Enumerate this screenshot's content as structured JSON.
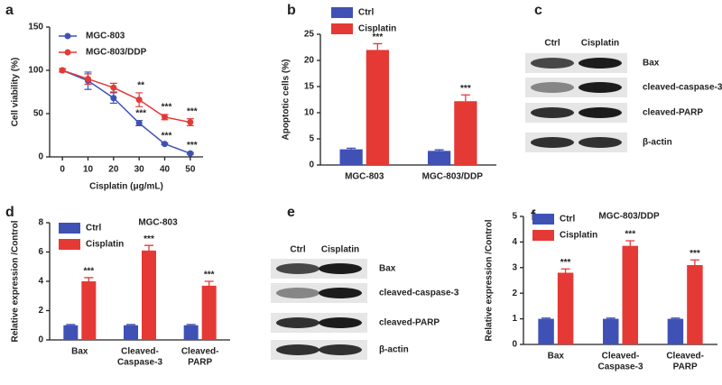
{
  "chart_data": [
    {
      "type": "line",
      "label": "a",
      "xlabel": "Cisplatin (μg/mL)",
      "ylabel": "Cell viability (%)",
      "x": [
        0,
        10,
        20,
        30,
        40,
        50
      ],
      "xlim": [
        -5,
        55
      ],
      "xticks": [
        0,
        10,
        20,
        30,
        40,
        50
      ],
      "ylim": [
        0,
        150
      ],
      "yticks": [
        0,
        50,
        100,
        150
      ],
      "series": [
        {
          "name": "MGC-803",
          "color": "#3f51b5",
          "values": [
            100,
            88,
            68,
            39,
            15,
            4
          ],
          "errors": [
            2,
            10,
            6,
            3,
            1,
            1
          ],
          "annotations": [
            null,
            null,
            null,
            "***",
            "***",
            "***"
          ]
        },
        {
          "name": "MGC-803/DDP",
          "color": "#e53935",
          "values": [
            100,
            90,
            80,
            66,
            46,
            40
          ],
          "errors": [
            2,
            6,
            5,
            8,
            3,
            4
          ],
          "annotations": [
            null,
            null,
            null,
            "**",
            "***",
            "***"
          ]
        }
      ]
    },
    {
      "type": "bar",
      "label": "b",
      "ylabel": "Apoptotic cells (%)",
      "categories": [
        [
          "MGC-803"
        ],
        [
          "MGC-803/DDP"
        ]
      ],
      "ylim": [
        0,
        25
      ],
      "yticks": [
        0,
        5,
        10,
        15,
        20,
        25
      ],
      "series": [
        {
          "name": "Ctrl",
          "color": "#3f51b5",
          "values": [
            3.0,
            2.7
          ],
          "errors": [
            0.2,
            0.2
          ]
        },
        {
          "name": "Cisplatin",
          "color": "#e53935",
          "values": [
            22,
            12.2
          ],
          "errors": [
            1.2,
            1.2
          ],
          "annotations": [
            "***",
            "***"
          ]
        }
      ]
    },
    {
      "type": "blot",
      "label": "c",
      "columns": [
        "Ctrl",
        "Cisplatin"
      ],
      "rows": [
        "Bax",
        "cleaved-caspase-3",
        "cleaved-PARP",
        "β-actin"
      ]
    },
    {
      "type": "bar",
      "label": "d",
      "title": "MGC-803",
      "ylabel": "Relative expression /Control",
      "categories": [
        [
          "Bax"
        ],
        [
          "Cleaved-",
          "Caspase-3"
        ],
        [
          "Cleaved-",
          "PARP"
        ]
      ],
      "ylim": [
        0,
        8
      ],
      "yticks": [
        0,
        2,
        4,
        6,
        8
      ],
      "series": [
        {
          "name": "Ctrl",
          "color": "#3f51b5",
          "values": [
            1,
            1,
            1
          ],
          "errors": [
            0.05,
            0.05,
            0.05
          ]
        },
        {
          "name": "Cisplatin",
          "color": "#e53935",
          "values": [
            4.0,
            6.1,
            3.7
          ],
          "errors": [
            0.25,
            0.35,
            0.3
          ],
          "annotations": [
            "***",
            "***",
            "***"
          ]
        }
      ]
    },
    {
      "type": "blot",
      "label": "e",
      "columns": [
        "Ctrl",
        "Cisplatin"
      ],
      "rows": [
        "Bax",
        "cleaved-caspase-3",
        "cleaved-PARP",
        "β-actin"
      ]
    },
    {
      "type": "bar",
      "label": "f",
      "title": "MGC-803/DDP",
      "ylabel": "Relative expression /Control",
      "categories": [
        [
          "Bax"
        ],
        [
          "Cleaved-",
          "Caspase-3"
        ],
        [
          "Cleaved-",
          "PARP"
        ]
      ],
      "ylim": [
        0,
        5
      ],
      "yticks": [
        0,
        1,
        2,
        3,
        4,
        5
      ],
      "series": [
        {
          "name": "Ctrl",
          "color": "#3f51b5",
          "values": [
            1,
            1,
            1
          ],
          "errors": [
            0.03,
            0.03,
            0.03
          ]
        },
        {
          "name": "Cisplatin",
          "color": "#e53935",
          "values": [
            2.8,
            3.85,
            3.1
          ],
          "errors": [
            0.15,
            0.2,
            0.2
          ],
          "annotations": [
            "***",
            "***",
            "***"
          ]
        }
      ]
    }
  ]
}
